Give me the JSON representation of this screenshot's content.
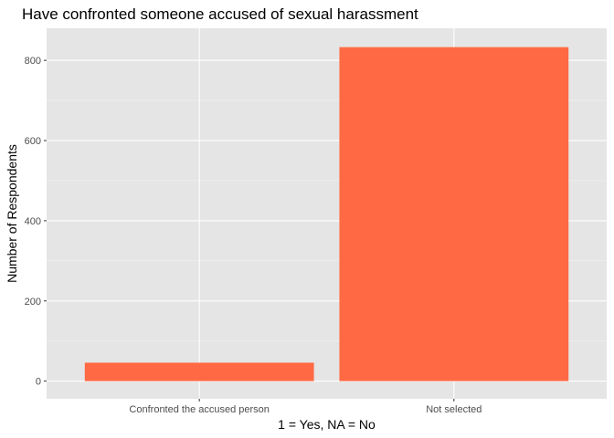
{
  "chart_data": {
    "type": "bar",
    "title": "Have confronted someone accused of sexual harassment",
    "xlabel": "1 = Yes, NA = No",
    "ylabel": "Number of Respondents",
    "categories": [
      "Confronted the accused person",
      "Not selected"
    ],
    "values": [
      46,
      833
    ],
    "yticks": [
      0,
      200,
      400,
      600,
      800
    ],
    "ylim": [
      -44,
      880
    ],
    "grid": true,
    "legend": "none",
    "colors": {
      "bar": "#ff6a44",
      "panel": "#e5e5e5",
      "grid_major": "#ffffff",
      "grid_minor": "#f2f2f2",
      "tick_text": "#4d4d4d",
      "tick_mark": "#333333"
    }
  }
}
